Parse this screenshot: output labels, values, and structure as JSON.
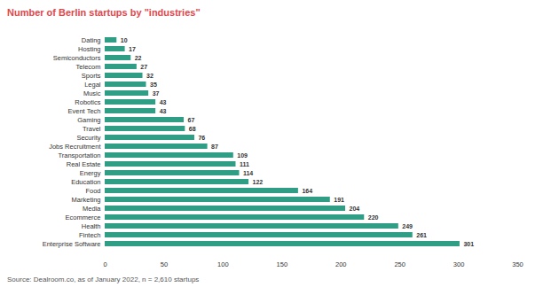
{
  "chart_data": {
    "type": "bar",
    "orientation": "horizontal",
    "title": "Number of Berlin startups by \"industries\"",
    "caption": "Source: Dealroom.co, as of January 2022, n = 2,610 startups",
    "categories": [
      "Dating",
      "Hosting",
      "Semiconductors",
      "Telecom",
      "Sports",
      "Legal",
      "Music",
      "Robotics",
      "Event Tech",
      "Gaming",
      "Travel",
      "Security",
      "Jobs Recruitment",
      "Transportation",
      "Real Estate",
      "Energy",
      "Education",
      "Food",
      "Marketing",
      "Media",
      "Ecommerce",
      "Health",
      "Fintech",
      "Enterprise Software"
    ],
    "values": [
      10,
      17,
      22,
      27,
      32,
      35,
      37,
      43,
      43,
      67,
      68,
      76,
      87,
      109,
      111,
      114,
      122,
      164,
      191,
      204,
      220,
      249,
      261,
      301
    ],
    "color": "#2f9e84",
    "xlim": [
      0,
      350
    ],
    "xticks": [
      0,
      50,
      100,
      150,
      200,
      250,
      300,
      350
    ],
    "grid": false,
    "data_labels": true
  }
}
